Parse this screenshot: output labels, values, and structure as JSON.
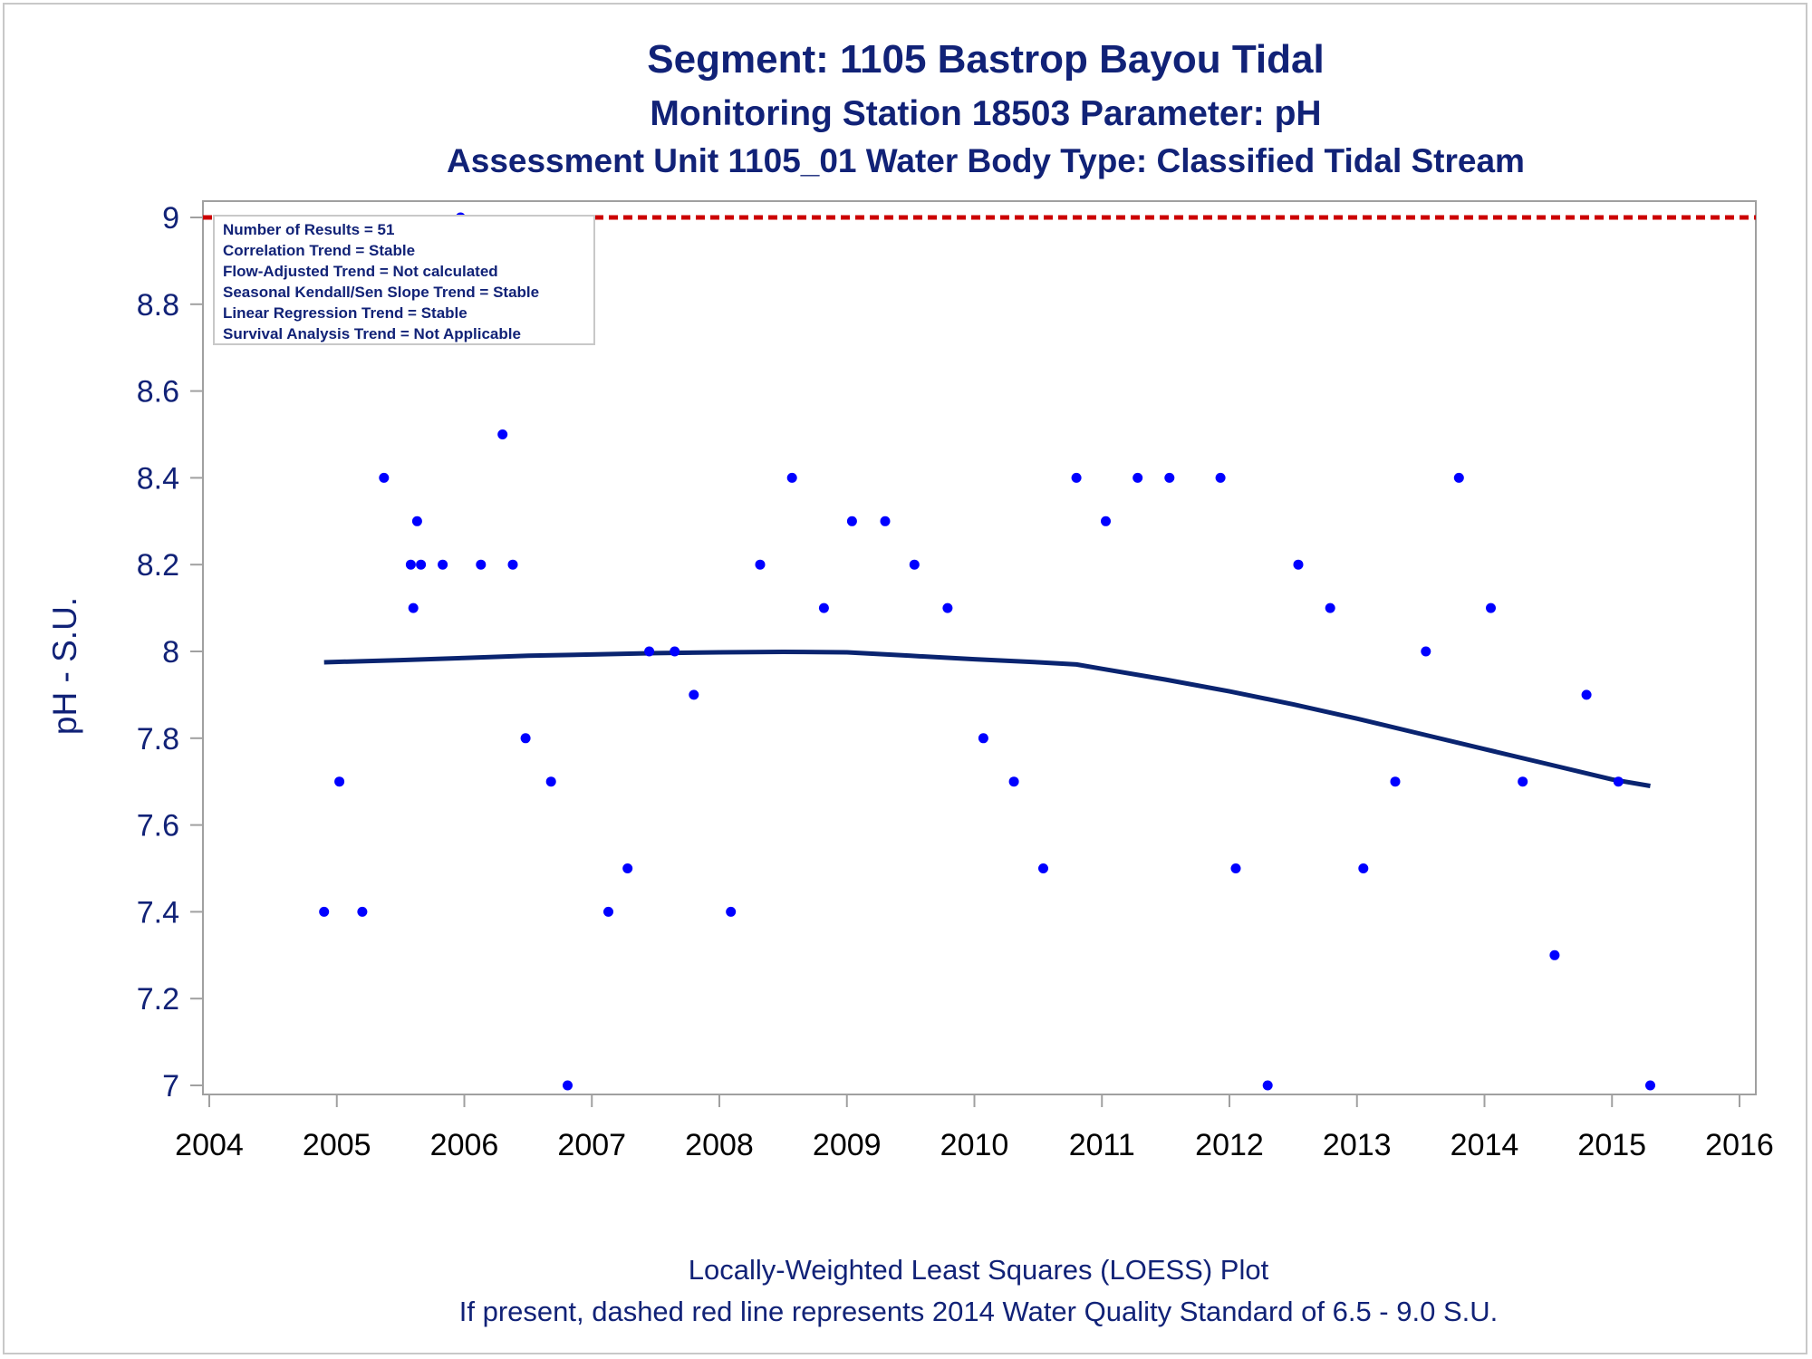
{
  "titles": {
    "line1": "Segment: 1105  Bastrop Bayou Tidal",
    "line2": "Monitoring Station 18503 Parameter: pH",
    "line3": "Assessment Unit 1105_01   Water Body Type: Classified Tidal Stream"
  },
  "inset": [
    "Number of Results = 51",
    "Correlation Trend = Stable",
    "Flow-Adjusted Trend = Not calculated",
    "Seasonal Kendall/Sen Slope Trend = Stable",
    "Linear Regression Trend = Stable",
    "Survival Analysis Trend = Not Applicable"
  ],
  "footnotes": {
    "line1": "Locally-Weighted Least Squares (LOESS) Plot",
    "line2": "If present, dashed red line represents 2014 Water Quality Standard of 6.5 - 9.0 S.U."
  },
  "colors": {
    "text": "#112277",
    "points": "#0000ff",
    "loess": "#0a2470",
    "standard": "#cc0000",
    "axis": "#a0a0a0"
  },
  "chart_data": {
    "type": "scatter",
    "ylabel": "pH - S.U.",
    "xlabel": "",
    "xlim": [
      2004,
      2016
    ],
    "ylim": [
      7,
      9
    ],
    "xticks": [
      "2004",
      "2005",
      "2006",
      "2007",
      "2008",
      "2009",
      "2010",
      "2011",
      "2012",
      "2013",
      "2014",
      "2015",
      "2016"
    ],
    "yticks": [
      "7",
      "7.2",
      "7.4",
      "7.6",
      "7.8",
      "8",
      "8.2",
      "8.4",
      "8.6",
      "8.8",
      "9"
    ],
    "grid": false,
    "standard_line": {
      "value": 9.0,
      "style": "dashed",
      "color": "red"
    },
    "points": [
      [
        2004.9,
        7.4
      ],
      [
        2005.02,
        7.7
      ],
      [
        2005.2,
        7.4
      ],
      [
        2005.37,
        8.4
      ],
      [
        2005.58,
        8.2
      ],
      [
        2005.6,
        8.1
      ],
      [
        2005.63,
        8.3
      ],
      [
        2005.66,
        8.2
      ],
      [
        2005.83,
        8.2
      ],
      [
        2005.97,
        9.0
      ],
      [
        2006.13,
        8.2
      ],
      [
        2006.3,
        8.5
      ],
      [
        2006.38,
        8.2
      ],
      [
        2006.48,
        7.8
      ],
      [
        2006.68,
        7.7
      ],
      [
        2006.81,
        7.0
      ],
      [
        2007.13,
        7.4
      ],
      [
        2007.28,
        7.5
      ],
      [
        2007.45,
        8.0
      ],
      [
        2007.65,
        8.0
      ],
      [
        2007.8,
        7.9
      ],
      [
        2008.09,
        7.4
      ],
      [
        2008.32,
        8.2
      ],
      [
        2008.57,
        8.4
      ],
      [
        2008.82,
        8.1
      ],
      [
        2009.04,
        8.3
      ],
      [
        2009.3,
        8.3
      ],
      [
        2009.53,
        8.2
      ],
      [
        2009.79,
        8.1
      ],
      [
        2010.07,
        7.8
      ],
      [
        2010.31,
        7.7
      ],
      [
        2010.54,
        7.5
      ],
      [
        2010.8,
        8.4
      ],
      [
        2011.03,
        8.3
      ],
      [
        2011.28,
        8.4
      ],
      [
        2011.53,
        8.4
      ],
      [
        2011.93,
        8.4
      ],
      [
        2012.05,
        7.5
      ],
      [
        2012.3,
        7.0
      ],
      [
        2012.54,
        8.2
      ],
      [
        2012.79,
        8.1
      ],
      [
        2013.05,
        7.5
      ],
      [
        2013.3,
        7.7
      ],
      [
        2013.54,
        8.0
      ],
      [
        2013.8,
        8.4
      ],
      [
        2014.05,
        8.1
      ],
      [
        2014.3,
        7.7
      ],
      [
        2014.55,
        7.3
      ],
      [
        2014.8,
        7.9
      ],
      [
        2015.05,
        7.7
      ],
      [
        2015.3,
        7.0
      ]
    ],
    "loess": {
      "x": [
        2004.9,
        2005.5,
        2006.0,
        2006.5,
        2007.0,
        2007.5,
        2008.0,
        2008.5,
        2009.0,
        2009.5,
        2010.0,
        2010.5,
        2010.8,
        2011.0,
        2011.5,
        2012.0,
        2012.5,
        2013.0,
        2013.5,
        2014.0,
        2014.5,
        2015.0,
        2015.3
      ],
      "y": [
        7.975,
        7.98,
        7.985,
        7.99,
        7.993,
        7.996,
        7.998,
        7.999,
        7.998,
        7.99,
        7.982,
        7.975,
        7.97,
        7.96,
        7.935,
        7.908,
        7.878,
        7.845,
        7.81,
        7.775,
        7.74,
        7.705,
        7.69
      ]
    }
  }
}
